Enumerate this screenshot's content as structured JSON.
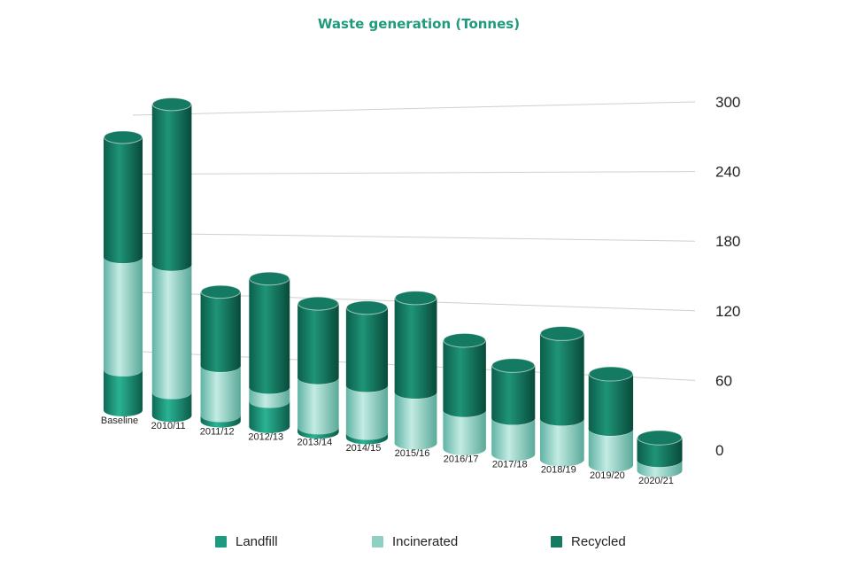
{
  "chart_data": {
    "type": "bar",
    "title": "Waste generation (Tonnes)",
    "xlabel": "",
    "ylabel": "",
    "stacked": true,
    "ylim": [
      0,
      300
    ],
    "yticks": [
      0,
      60,
      120,
      180,
      240,
      300
    ],
    "grid": true,
    "legend_position": "bottom",
    "categories": [
      "Baseline",
      "2010/11",
      "2011/12",
      "2012/13",
      "2013/14",
      "2014/15",
      "2015/16",
      "2016/17",
      "2017/18",
      "2018/19",
      "2019/20",
      "2020/21"
    ],
    "series": [
      {
        "name": "Landfill",
        "color": "#1d9b80",
        "values": [
          35,
          20,
          5,
          22,
          4,
          4,
          0,
          0,
          0,
          0,
          0,
          0
        ]
      },
      {
        "name": "Incinerated",
        "color": "#8ed0c4",
        "values": [
          98,
          111,
          43,
          12,
          43,
          41,
          44,
          33,
          31,
          35,
          31,
          9
        ]
      },
      {
        "name": "Recycled",
        "color": "#147a62",
        "values": [
          104,
          139,
          64,
          94,
          64,
          67,
          81,
          60,
          45,
          73,
          47,
          19
        ]
      }
    ]
  }
}
